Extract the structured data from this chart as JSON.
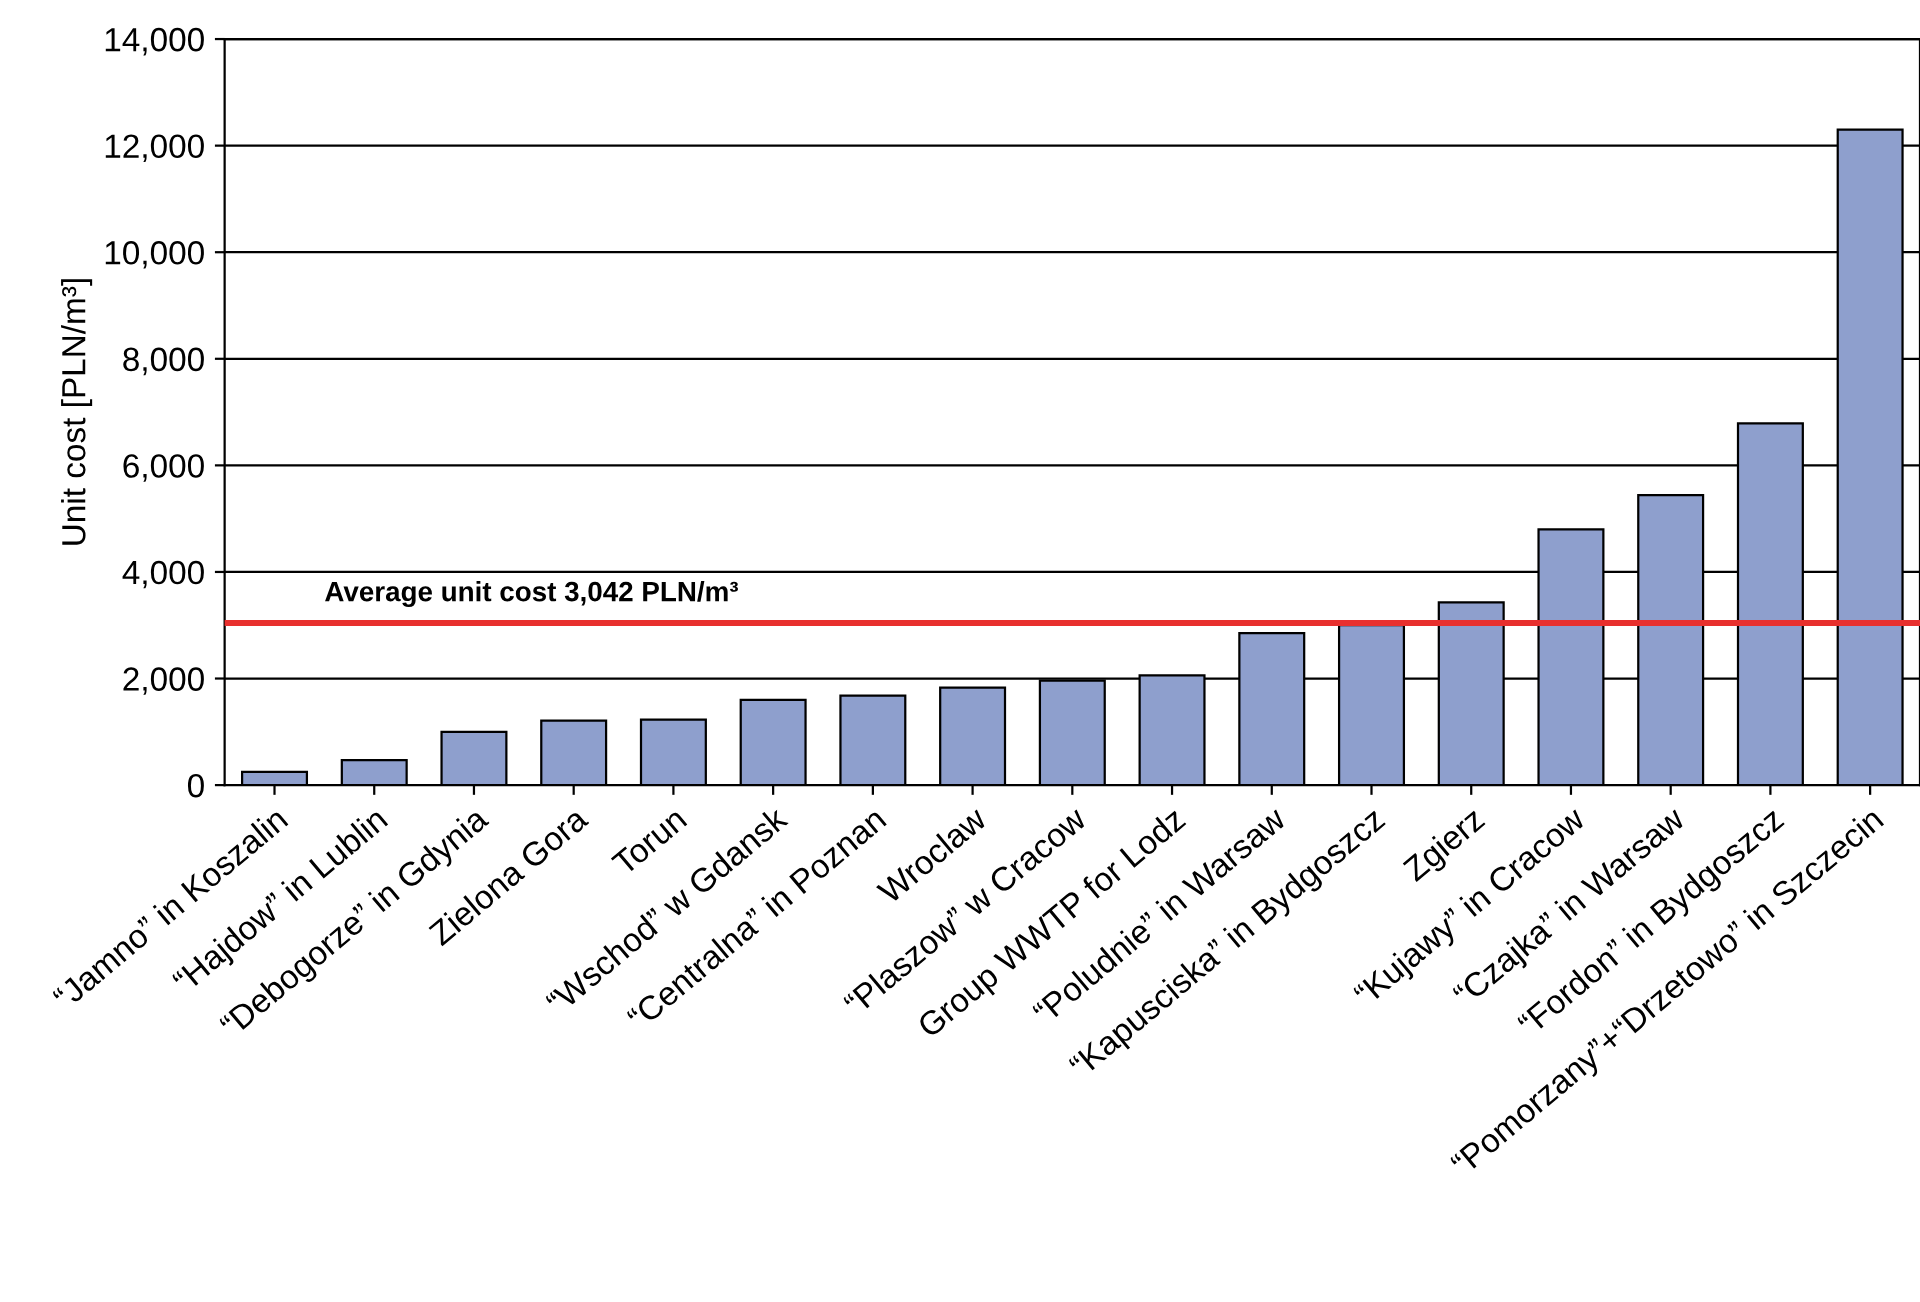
{
  "chart_data": {
    "type": "bar",
    "ylabel": "Unit cost [PLN/m³]",
    "categories": [
      "“Jamno” in Koszalin",
      "“Hajdow” in Lublin",
      "“Debogorze” in Gdynia",
      "Zielona Gora",
      "Torun",
      "“Wschod” w Gdansk",
      "“Centralna” in Poznan",
      "Wroclaw",
      "“Plaszow” w Cracow",
      "Group WWTP for Lodz",
      "“Poludnie” in Warsaw",
      "“Kapusciska” in Bydgoszcz",
      "Zgierz",
      "“Kujawy” in Cracow",
      "“Czajka” in Warsaw",
      "“Fordon” in Bydgoszcz",
      "“Pomorzany”+“Drzetowo” in Szczecin"
    ],
    "values": [
      250,
      470,
      1000,
      1210,
      1230,
      1600,
      1680,
      1830,
      1960,
      2060,
      2850,
      3000,
      3430,
      4800,
      5440,
      6790,
      12300
    ],
    "color": "#8e9fcd",
    "ylim": [
      0,
      14000
    ],
    "yticks": [
      {
        "value": 0,
        "label": "0"
      },
      {
        "value": 2000,
        "label": "2,000"
      },
      {
        "value": 4000,
        "label": "4,000"
      },
      {
        "value": 6000,
        "label": "6,000"
      },
      {
        "value": 8000,
        "label": "8,000"
      },
      {
        "value": 10000,
        "label": "10,000"
      },
      {
        "value": 12000,
        "label": "12,000"
      },
      {
        "value": 14000,
        "label": "14,000"
      }
    ],
    "grid": "y",
    "ref_lines": [
      {
        "axis": "y",
        "value": 3042,
        "label": "Average unit cost 3,042 PLN/m³",
        "color": "#e8302e"
      }
    ]
  }
}
